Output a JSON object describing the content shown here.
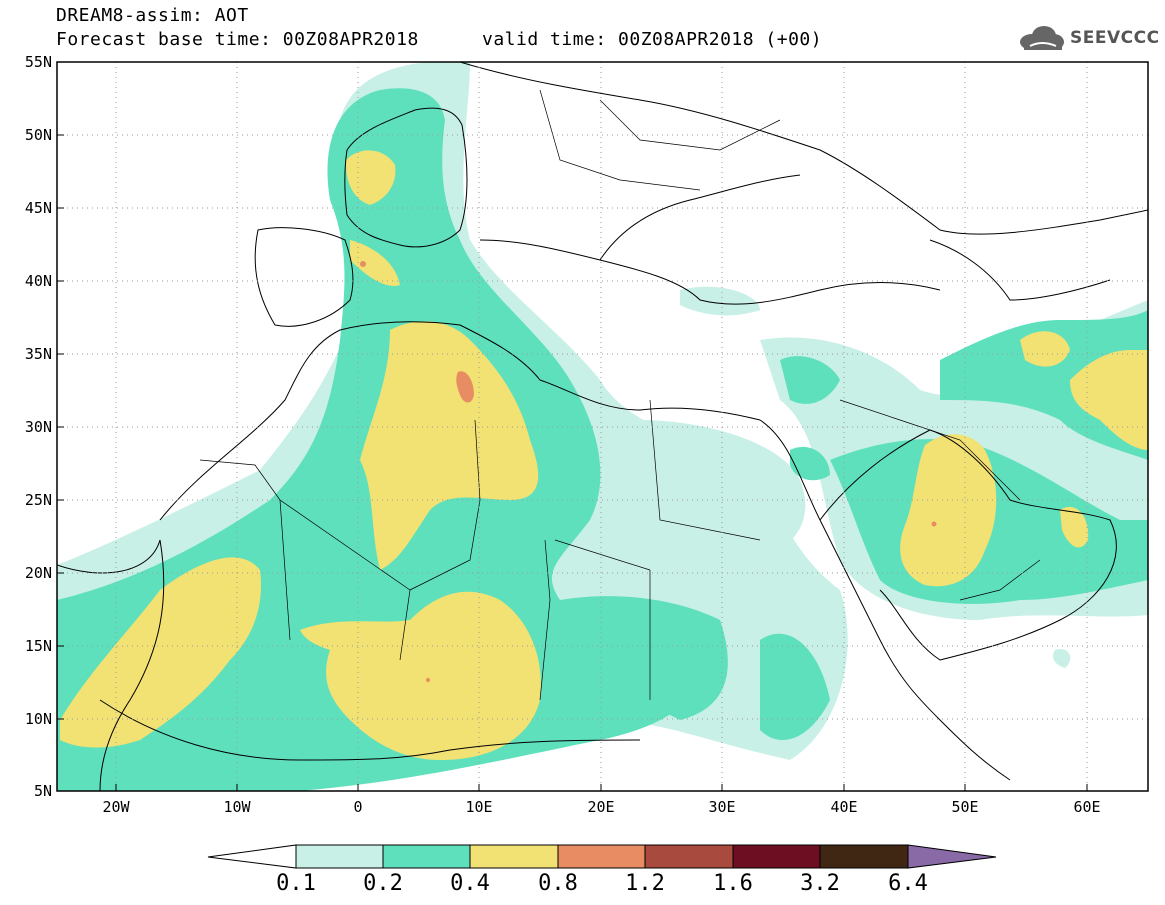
{
  "header": {
    "title": "DREAM8-assim: AOT",
    "forecast_base": "Forecast base time: 00Z08APR2018",
    "valid_time": "valid time: 00Z08APR2018 (+00)",
    "logo_text": "SEEVCCC",
    "logo_icon": "cloud-icon"
  },
  "map": {
    "lon_range": [
      -25,
      65
    ],
    "lat_range": [
      5,
      55
    ],
    "lat_ticks": [
      "55N",
      "50N",
      "45N",
      "40N",
      "35N",
      "30N",
      "25N",
      "20N",
      "15N",
      "10N",
      "5N"
    ],
    "lon_ticks": [
      "20W",
      "10W",
      "0",
      "10E",
      "20E",
      "30E",
      "40E",
      "50E",
      "60E"
    ],
    "grid": "dotted",
    "variable": "Aerosol Optical Thickness"
  },
  "colorbar": {
    "labels": [
      "0.1",
      "0.2",
      "0.4",
      "0.8",
      "1.2",
      "1.6",
      "3.2",
      "6.4"
    ],
    "colors": [
      "#c8f0e6",
      "#5fe0bd",
      "#f2e173",
      "#e88d63",
      "#a84a3e",
      "#6e0e22",
      "#3f2713",
      "#8a6aa6"
    ]
  }
}
